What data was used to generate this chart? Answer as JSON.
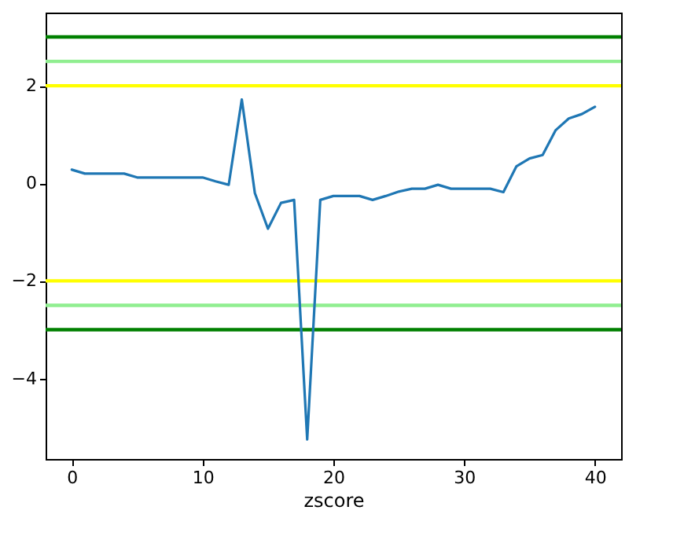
{
  "chart_data": {
    "type": "line",
    "xlabel": "zscore",
    "x": [
      0,
      1,
      2,
      3,
      4,
      5,
      6,
      7,
      8,
      9,
      10,
      11,
      12,
      13,
      14,
      15,
      16,
      17,
      18,
      19,
      20,
      21,
      22,
      23,
      24,
      25,
      26,
      27,
      28,
      29,
      30,
      31,
      32,
      33,
      34,
      35,
      36,
      37,
      38,
      39,
      40
    ],
    "series": [
      {
        "color": "#1f77b4",
        "values": [
          0.28,
          0.2,
          0.2,
          0.2,
          0.2,
          0.12,
          0.12,
          0.12,
          0.12,
          0.12,
          0.12,
          0.04,
          -0.03,
          1.72,
          -0.2,
          -0.93,
          -0.4,
          -0.34,
          -5.25,
          -0.34,
          -0.26,
          -0.26,
          -0.26,
          -0.34,
          -0.26,
          -0.17,
          -0.11,
          -0.11,
          -0.03,
          -0.11,
          -0.11,
          -0.11,
          -0.11,
          -0.18,
          0.35,
          0.51,
          0.58,
          1.09,
          1.33,
          1.42,
          1.57
        ]
      }
    ],
    "xlim": [
      -2,
      42
    ],
    "xticks": [
      0,
      10,
      20,
      30,
      40
    ],
    "ylim": [
      -5.65,
      3.5
    ],
    "yticks": [
      {
        "value": -4,
        "label": "−4"
      },
      {
        "value": -2,
        "label": "−2"
      },
      0,
      2
    ],
    "ref_lines": [
      {
        "axis": "y",
        "value": 2,
        "color": "#ffff00"
      },
      {
        "axis": "y",
        "value": -2,
        "color": "#ffff00"
      },
      {
        "axis": "y",
        "value": 2.5,
        "color": "#90ee90"
      },
      {
        "axis": "y",
        "value": -2.5,
        "color": "#90ee90"
      },
      {
        "axis": "y",
        "value": 3,
        "color": "#008000"
      },
      {
        "axis": "y",
        "value": -3,
        "color": "#008000"
      }
    ],
    "grid": false,
    "marker": "none",
    "line_style": "solid"
  }
}
